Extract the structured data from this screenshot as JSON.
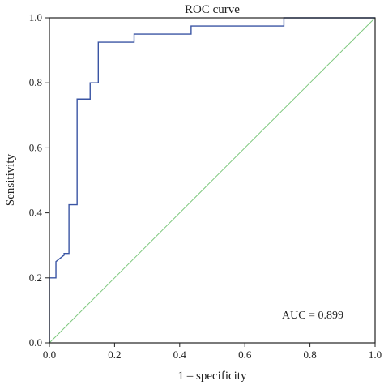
{
  "chart_data": {
    "type": "line",
    "title": "ROC curve",
    "xlabel": "1 – specificity",
    "ylabel": "Sensitivity",
    "xlim": [
      0,
      1
    ],
    "ylim": [
      0,
      1
    ],
    "xticks": [
      "0.0",
      "0.2",
      "0.4",
      "0.6",
      "0.8",
      "1.0"
    ],
    "yticks": [
      "0.0",
      "0.2",
      "0.4",
      "0.6",
      "0.8",
      "1.0"
    ],
    "grid": false,
    "annotation": "AUC = 0.899",
    "series": [
      {
        "kind": "roc",
        "color": "#3a55a4",
        "x": [
          0,
          0,
          0.02,
          0.02,
          0.045,
          0.045,
          0.06,
          0.06,
          0.085,
          0.085,
          0.125,
          0.125,
          0.15,
          0.15,
          0.26,
          0.26,
          0.435,
          0.435,
          0.72,
          0.72,
          1.0
        ],
        "y": [
          0,
          0.2,
          0.2,
          0.25,
          0.27,
          0.275,
          0.275,
          0.425,
          0.425,
          0.75,
          0.75,
          0.8,
          0.8,
          0.925,
          0.925,
          0.95,
          0.95,
          0.975,
          0.975,
          1.0,
          1.0
        ]
      },
      {
        "kind": "reference",
        "color": "#7ec87e",
        "x": [
          0,
          1
        ],
        "y": [
          0,
          1
        ]
      }
    ]
  }
}
